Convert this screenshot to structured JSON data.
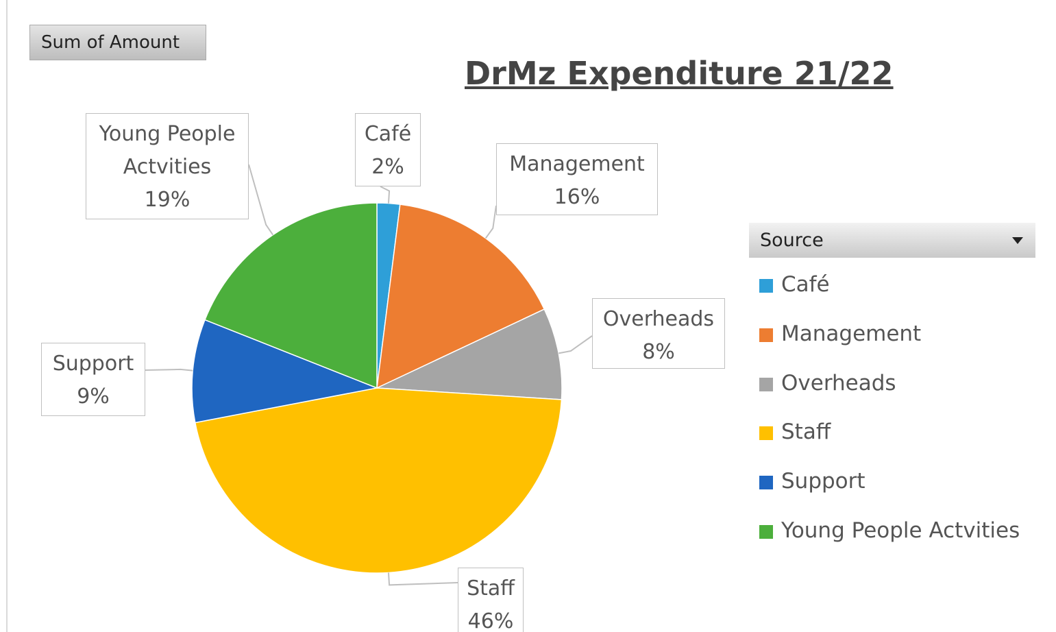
{
  "chart_data": {
    "type": "pie",
    "field_button": "Sum of Amount",
    "title": "DrMz Expenditure 21/22",
    "legend_title": "Source",
    "legend": "right",
    "categories": [
      "Café",
      "Management",
      "Overheads",
      "Staff",
      "Support",
      "Young People Actvities"
    ],
    "values": [
      2,
      16,
      8,
      46,
      9,
      19
    ],
    "value_labels": [
      "2%",
      "16%",
      "8%",
      "46%",
      "9%",
      "19%"
    ],
    "colors": [
      "#2e9fd8",
      "#ed7d31",
      "#a5a5a5",
      "#ffc000",
      "#1f66c1",
      "#4caf3c"
    ]
  }
}
